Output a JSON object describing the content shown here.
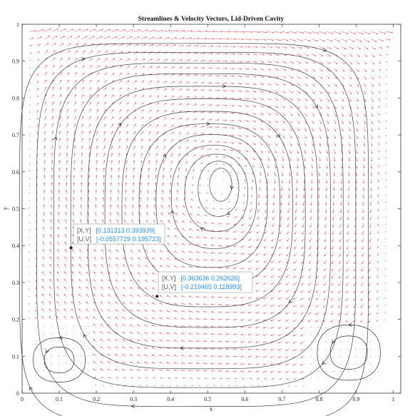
{
  "colors": {
    "vector": "#e8222a",
    "streamline": "#2a2a2a",
    "datatip_value": "#1e90ff",
    "datatip_key": "#555555"
  },
  "chart_data": {
    "type": "scatter",
    "title": "Streamlines & Velocity Vectors, Lid-Driven Cavity",
    "xlabel": "x",
    "ylabel": "y",
    "xlim": [
      0,
      1.02
    ],
    "ylim": [
      0,
      1
    ],
    "xticks": [
      "0",
      "0.1",
      "0.2",
      "0.3",
      "0.4",
      "0.5",
      "0.6",
      "0.7",
      "0.8",
      "0.9",
      "1"
    ],
    "yticks": [
      "0",
      "0.1",
      "0.2",
      "0.3",
      "0.4",
      "0.5",
      "0.6",
      "0.7",
      "0.8",
      "0.9",
      "1"
    ],
    "grid": false,
    "series": [
      {
        "style": "velocity-vectors",
        "color": "#e8222a"
      },
      {
        "style": "streamlines",
        "color": "#2a2a2a"
      }
    ],
    "primary_vortex_center": [
      0.535,
      0.565
    ],
    "secondary_vortices": [
      {
        "corner": "bottom-left",
        "center": [
          0.1,
          0.09
        ]
      },
      {
        "corner": "bottom-right",
        "center": [
          0.88,
          0.11
        ]
      }
    ],
    "datatips": [
      {
        "point": [
          0.131313,
          0.393939
        ],
        "label_xy": "[X,Y]",
        "value_xy": "[0.131313 0.393939]",
        "label_uv": "[U,V]",
        "value_uv": "[-0.0557729 0.195723]"
      },
      {
        "point": [
          0.363636,
          0.262626
        ],
        "label_xy": "[X,Y]",
        "value_xy": "[0.363636 0.262626]",
        "label_uv": "[U,V]",
        "value_uv": "[-0.219465 0.118993]"
      }
    ]
  }
}
